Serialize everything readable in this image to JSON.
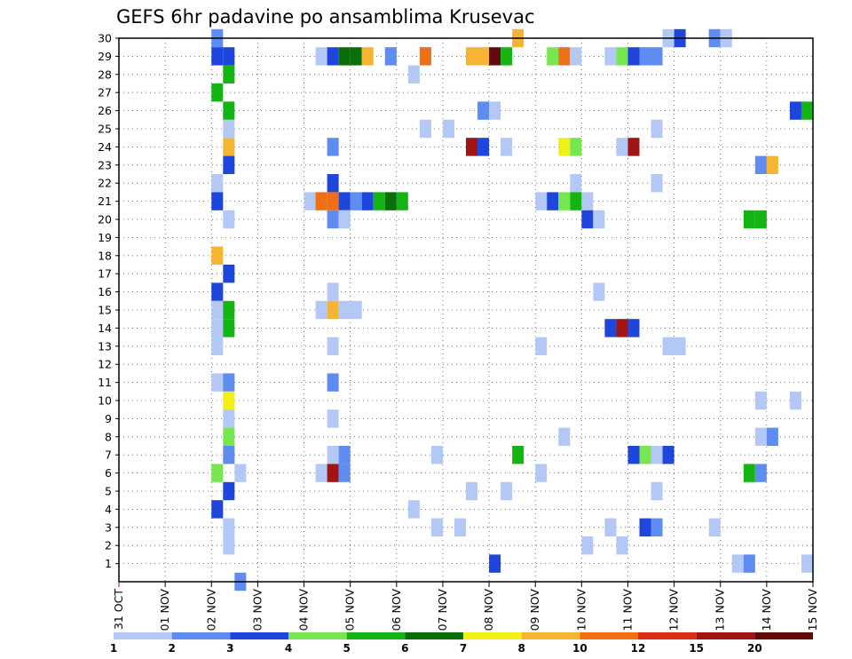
{
  "chart_data": {
    "type": "heatmap",
    "title": "GEFS 6hr padavine po ansamblima Krusevac",
    "xlabel": "",
    "ylabel": "",
    "x_tick_labels": [
      "31 OCT",
      "01 NOV",
      "02 NOV",
      "03 NOV",
      "04 NOV",
      "05 NOV",
      "06 NOV",
      "07 NOV",
      "08 NOV",
      "09 NOV",
      "10 NOV",
      "11 NOV",
      "12 NOV",
      "13 NOV",
      "14 NOV",
      "15 NOV"
    ],
    "x_range_days": [
      0,
      15
    ],
    "y_tick_labels": [
      "1",
      "2",
      "3",
      "4",
      "5",
      "6",
      "7",
      "8",
      "9",
      "10",
      "11",
      "12",
      "13",
      "14",
      "15",
      "16",
      "17",
      "18",
      "19",
      "20",
      "21",
      "22",
      "23",
      "24",
      "25",
      "26",
      "27",
      "28",
      "29",
      "30"
    ],
    "y_range": [
      0,
      30
    ],
    "time_step_hours": 6,
    "grid": "dotted",
    "colorbar": {
      "labels": [
        "1",
        "2",
        "3",
        "4",
        "5",
        "6",
        "7",
        "8",
        "10",
        "12",
        "15",
        "20"
      ],
      "colors": [
        "#b4c8f5",
        "#5f8cf0",
        "#1e46dc",
        "#78e650",
        "#14b414",
        "#0a6e0a",
        "#f0f014",
        "#f5b432",
        "#f06e14",
        "#dc2d14",
        "#a01414",
        "#640a0a"
      ]
    },
    "cells": [
      {
        "member": 30,
        "x": 2.125,
        "level": 2
      },
      {
        "member": 30,
        "x": 8.625,
        "level": 8
      },
      {
        "member": 30,
        "x": 11.875,
        "level": 1
      },
      {
        "member": 30,
        "x": 12.125,
        "level": 3
      },
      {
        "member": 30,
        "x": 12.875,
        "level": 2
      },
      {
        "member": 30,
        "x": 13.125,
        "level": 1
      },
      {
        "member": 29,
        "x": 2.125,
        "level": 3
      },
      {
        "member": 29,
        "x": 2.375,
        "level": 3
      },
      {
        "member": 29,
        "x": 4.375,
        "level": 1
      },
      {
        "member": 29,
        "x": 4.625,
        "level": 3
      },
      {
        "member": 29,
        "x": 4.875,
        "level": 6
      },
      {
        "member": 29,
        "x": 5.125,
        "level": 6
      },
      {
        "member": 29,
        "x": 5.375,
        "level": 8
      },
      {
        "member": 29,
        "x": 5.875,
        "level": 2
      },
      {
        "member": 29,
        "x": 6.625,
        "level": 9
      },
      {
        "member": 29,
        "x": 7.625,
        "level": 8
      },
      {
        "member": 29,
        "x": 7.875,
        "level": 8
      },
      {
        "member": 29,
        "x": 8.125,
        "level": 12
      },
      {
        "member": 29,
        "x": 8.375,
        "level": 5
      },
      {
        "member": 29,
        "x": 9.375,
        "level": 4
      },
      {
        "member": 29,
        "x": 9.625,
        "level": 9
      },
      {
        "member": 29,
        "x": 9.875,
        "level": 1
      },
      {
        "member": 29,
        "x": 10.625,
        "level": 1
      },
      {
        "member": 29,
        "x": 10.875,
        "level": 4
      },
      {
        "member": 29,
        "x": 11.125,
        "level": 3
      },
      {
        "member": 29,
        "x": 11.375,
        "level": 2
      },
      {
        "member": 29,
        "x": 11.625,
        "level": 2
      },
      {
        "member": 28,
        "x": 2.375,
        "level": 5
      },
      {
        "member": 28,
        "x": 6.375,
        "level": 1
      },
      {
        "member": 27,
        "x": 2.125,
        "level": 5
      },
      {
        "member": 26,
        "x": 2.375,
        "level": 5
      },
      {
        "member": 26,
        "x": 7.875,
        "level": 2
      },
      {
        "member": 26,
        "x": 8.125,
        "level": 1
      },
      {
        "member": 26,
        "x": 14.625,
        "level": 3
      },
      {
        "member": 26,
        "x": 14.875,
        "level": 5
      },
      {
        "member": 25,
        "x": 2.375,
        "level": 1
      },
      {
        "member": 25,
        "x": 6.625,
        "level": 1
      },
      {
        "member": 25,
        "x": 7.125,
        "level": 1
      },
      {
        "member": 25,
        "x": 11.625,
        "level": 1
      },
      {
        "member": 24,
        "x": 2.375,
        "level": 8
      },
      {
        "member": 24,
        "x": 4.625,
        "level": 2
      },
      {
        "member": 24,
        "x": 7.625,
        "level": 11
      },
      {
        "member": 24,
        "x": 7.875,
        "level": 3
      },
      {
        "member": 24,
        "x": 8.375,
        "level": 1
      },
      {
        "member": 24,
        "x": 9.625,
        "level": 7
      },
      {
        "member": 24,
        "x": 9.875,
        "level": 4
      },
      {
        "member": 24,
        "x": 10.875,
        "level": 1
      },
      {
        "member": 24,
        "x": 11.125,
        "level": 11
      },
      {
        "member": 23,
        "x": 2.375,
        "level": 3
      },
      {
        "member": 23,
        "x": 13.875,
        "level": 2
      },
      {
        "member": 23,
        "x": 14.125,
        "level": 8
      },
      {
        "member": 22,
        "x": 2.125,
        "level": 1
      },
      {
        "member": 22,
        "x": 4.625,
        "level": 3
      },
      {
        "member": 22,
        "x": 9.875,
        "level": 1
      },
      {
        "member": 22,
        "x": 11.625,
        "level": 1
      },
      {
        "member": 21,
        "x": 2.125,
        "level": 3
      },
      {
        "member": 21,
        "x": 4.125,
        "level": 1
      },
      {
        "member": 21,
        "x": 4.375,
        "level": 9
      },
      {
        "member": 21,
        "x": 4.625,
        "level": 9
      },
      {
        "member": 21,
        "x": 4.875,
        "level": 3
      },
      {
        "member": 21,
        "x": 5.125,
        "level": 2
      },
      {
        "member": 21,
        "x": 5.375,
        "level": 3
      },
      {
        "member": 21,
        "x": 5.625,
        "level": 5
      },
      {
        "member": 21,
        "x": 5.875,
        "level": 6
      },
      {
        "member": 21,
        "x": 6.125,
        "level": 5
      },
      {
        "member": 21,
        "x": 9.125,
        "level": 1
      },
      {
        "member": 21,
        "x": 9.375,
        "level": 3
      },
      {
        "member": 21,
        "x": 9.625,
        "level": 4
      },
      {
        "member": 21,
        "x": 9.875,
        "level": 5
      },
      {
        "member": 21,
        "x": 10.125,
        "level": 1
      },
      {
        "member": 20,
        "x": 2.375,
        "level": 1
      },
      {
        "member": 20,
        "x": 4.625,
        "level": 2
      },
      {
        "member": 20,
        "x": 4.875,
        "level": 1
      },
      {
        "member": 20,
        "x": 10.125,
        "level": 3
      },
      {
        "member": 20,
        "x": 10.375,
        "level": 1
      },
      {
        "member": 20,
        "x": 13.625,
        "level": 5
      },
      {
        "member": 20,
        "x": 13.875,
        "level": 5
      },
      {
        "member": 18,
        "x": 2.125,
        "level": 8
      },
      {
        "member": 17,
        "x": 2.375,
        "level": 3
      },
      {
        "member": 16,
        "x": 2.125,
        "level": 3
      },
      {
        "member": 16,
        "x": 4.625,
        "level": 1
      },
      {
        "member": 16,
        "x": 10.375,
        "level": 1
      },
      {
        "member": 15,
        "x": 2.125,
        "level": 1
      },
      {
        "member": 15,
        "x": 2.375,
        "level": 5
      },
      {
        "member": 15,
        "x": 4.375,
        "level": 1
      },
      {
        "member": 15,
        "x": 4.625,
        "level": 8
      },
      {
        "member": 15,
        "x": 4.875,
        "level": 1
      },
      {
        "member": 15,
        "x": 5.125,
        "level": 1
      },
      {
        "member": 14,
        "x": 2.125,
        "level": 1
      },
      {
        "member": 14,
        "x": 2.375,
        "level": 5
      },
      {
        "member": 14,
        "x": 10.625,
        "level": 3
      },
      {
        "member": 14,
        "x": 10.875,
        "level": 11
      },
      {
        "member": 14,
        "x": 11.125,
        "level": 3
      },
      {
        "member": 13,
        "x": 2.125,
        "level": 1
      },
      {
        "member": 13,
        "x": 4.625,
        "level": 1
      },
      {
        "member": 13,
        "x": 9.125,
        "level": 1
      },
      {
        "member": 13,
        "x": 11.875,
        "level": 1
      },
      {
        "member": 13,
        "x": 12.125,
        "level": 1
      },
      {
        "member": 11,
        "x": 2.125,
        "level": 1
      },
      {
        "member": 11,
        "x": 2.375,
        "level": 2
      },
      {
        "member": 11,
        "x": 4.625,
        "level": 2
      },
      {
        "member": 10,
        "x": 2.375,
        "level": 7
      },
      {
        "member": 10,
        "x": 13.875,
        "level": 1
      },
      {
        "member": 10,
        "x": 14.625,
        "level": 1
      },
      {
        "member": 9,
        "x": 2.375,
        "level": 1
      },
      {
        "member": 9,
        "x": 4.625,
        "level": 1
      },
      {
        "member": 8,
        "x": 2.375,
        "level": 4
      },
      {
        "member": 8,
        "x": 9.625,
        "level": 1
      },
      {
        "member": 8,
        "x": 13.875,
        "level": 1
      },
      {
        "member": 8,
        "x": 14.125,
        "level": 2
      },
      {
        "member": 7,
        "x": 2.375,
        "level": 2
      },
      {
        "member": 7,
        "x": 4.625,
        "level": 1
      },
      {
        "member": 7,
        "x": 4.875,
        "level": 2
      },
      {
        "member": 7,
        "x": 6.875,
        "level": 1
      },
      {
        "member": 7,
        "x": 8.625,
        "level": 5
      },
      {
        "member": 7,
        "x": 11.125,
        "level": 3
      },
      {
        "member": 7,
        "x": 11.375,
        "level": 4
      },
      {
        "member": 7,
        "x": 11.625,
        "level": 1
      },
      {
        "member": 7,
        "x": 11.875,
        "level": 3
      },
      {
        "member": 6,
        "x": 2.125,
        "level": 4
      },
      {
        "member": 6,
        "x": 2.625,
        "level": 1
      },
      {
        "member": 6,
        "x": 4.375,
        "level": 1
      },
      {
        "member": 6,
        "x": 4.625,
        "level": 11
      },
      {
        "member": 6,
        "x": 4.875,
        "level": 2
      },
      {
        "member": 6,
        "x": 9.125,
        "level": 1
      },
      {
        "member": 6,
        "x": 13.625,
        "level": 5
      },
      {
        "member": 6,
        "x": 13.875,
        "level": 2
      },
      {
        "member": 5,
        "x": 2.375,
        "level": 3
      },
      {
        "member": 5,
        "x": 7.625,
        "level": 1
      },
      {
        "member": 5,
        "x": 8.375,
        "level": 1
      },
      {
        "member": 5,
        "x": 11.625,
        "level": 1
      },
      {
        "member": 4,
        "x": 2.125,
        "level": 3
      },
      {
        "member": 4,
        "x": 6.375,
        "level": 1
      },
      {
        "member": 3,
        "x": 2.375,
        "level": 1
      },
      {
        "member": 3,
        "x": 6.875,
        "level": 1
      },
      {
        "member": 3,
        "x": 7.375,
        "level": 1
      },
      {
        "member": 3,
        "x": 10.625,
        "level": 1
      },
      {
        "member": 3,
        "x": 11.375,
        "level": 3
      },
      {
        "member": 3,
        "x": 11.625,
        "level": 2
      },
      {
        "member": 3,
        "x": 12.875,
        "level": 1
      },
      {
        "member": 2,
        "x": 2.375,
        "level": 1
      },
      {
        "member": 2,
        "x": 10.125,
        "level": 1
      },
      {
        "member": 2,
        "x": 10.875,
        "level": 1
      },
      {
        "member": 1,
        "x": 8.125,
        "level": 3
      },
      {
        "member": 1,
        "x": 13.375,
        "level": 1
      },
      {
        "member": 1,
        "x": 13.625,
        "level": 2
      },
      {
        "member": 1,
        "x": 14.875,
        "level": 1
      },
      {
        "member": 0,
        "x": 2.625,
        "level": 2
      }
    ]
  }
}
